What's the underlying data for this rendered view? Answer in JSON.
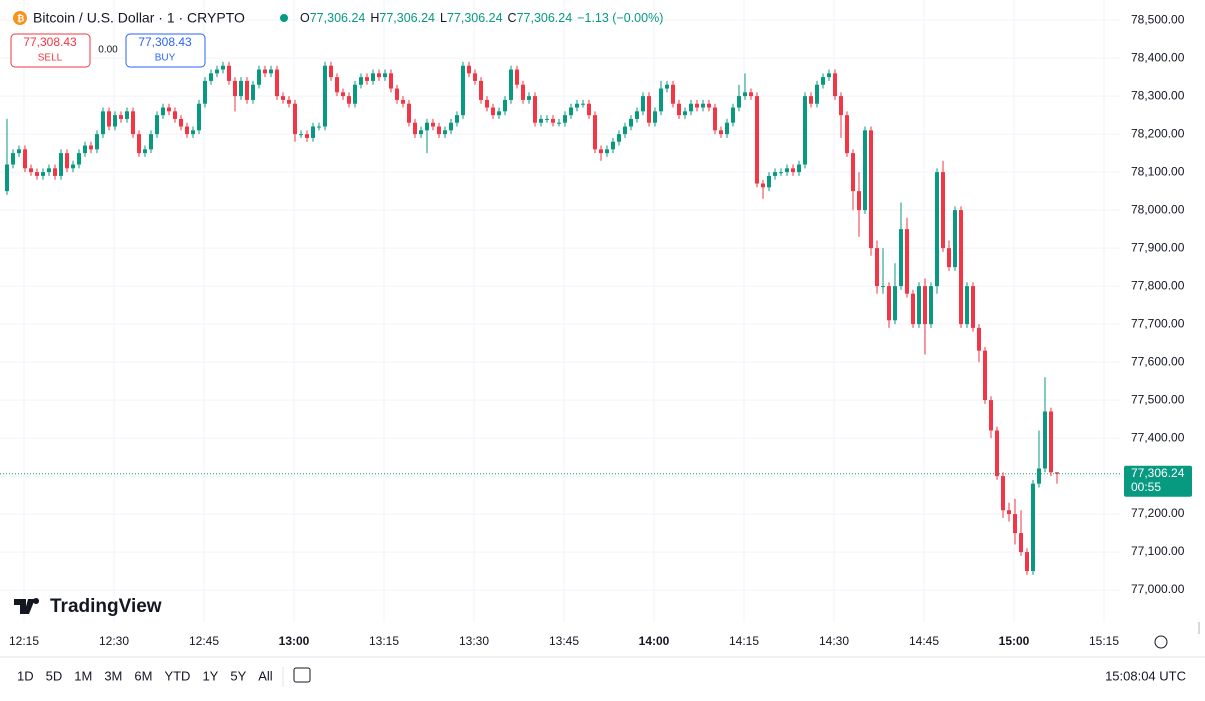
{
  "chart_data": {
    "type": "candlestick",
    "title": "Bitcoin / U.S. Dollar · 1 · CRYPTO",
    "ohlc_header": {
      "o_label": "O",
      "o": "77,306.24",
      "h_label": "H",
      "h": "77,306.24",
      "l_label": "L",
      "l": "77,306.24",
      "c_label": "C",
      "c": "77,306.24",
      "change": "−1.13 (−0.00%)"
    },
    "sell": {
      "price": "77,308.43",
      "label": "SELL"
    },
    "spread": "0.00",
    "buy": {
      "price": "77,308.43",
      "label": "BUY"
    },
    "logo": "TradingView",
    "up_color": "#089981",
    "down_color": "#f23645",
    "ylim": [
      76937,
      78553
    ],
    "yticks": [
      {
        "value": 78500,
        "label": "78,500.00"
      },
      {
        "value": 78400,
        "label": "78,400.00"
      },
      {
        "value": 78300,
        "label": "78,300.00"
      },
      {
        "value": 78200,
        "label": "78,200.00"
      },
      {
        "value": 78100,
        "label": "78,100.00"
      },
      {
        "value": 78000,
        "label": "78,000.00"
      },
      {
        "value": 77900,
        "label": "77,900.00"
      },
      {
        "value": 77800,
        "label": "77,800.00"
      },
      {
        "value": 77700,
        "label": "77,700.00"
      },
      {
        "value": 77600,
        "label": "77,600.00"
      },
      {
        "value": 77500,
        "label": "77,500.00"
      },
      {
        "value": 77400,
        "label": "77,400.00"
      },
      {
        "value": 77300,
        "label": "77,300.00"
      },
      {
        "value": 77200,
        "label": "77,200.00"
      },
      {
        "value": 77100,
        "label": "77,100.00"
      },
      {
        "value": 77000,
        "label": "77,000.00"
      }
    ],
    "xticks": [
      "12:15",
      "12:30",
      "12:45",
      "13:00",
      "13:15",
      "13:30",
      "13:45",
      "14:00",
      "14:15",
      "14:30",
      "14:45",
      "15:00",
      "15:15"
    ],
    "bold_xticks": [
      "13:00",
      "14:00",
      "15:00"
    ],
    "grid": true,
    "last_price": {
      "value": 77306.24,
      "label": "77,306.24",
      "countdown": "00:55"
    },
    "candles": {
      "open": [
        78050,
        78120,
        78150,
        78160,
        78110,
        78100,
        78090,
        78100,
        78110,
        78090,
        78150,
        78110,
        78120,
        78150,
        78170,
        78160,
        78200,
        78260,
        78220,
        78250,
        78240,
        78260,
        78200,
        78150,
        78160,
        78200,
        78250,
        78270,
        78260,
        78240,
        78220,
        78200,
        78210,
        78280,
        78340,
        78360,
        78370,
        78380,
        78340,
        78300,
        78340,
        78290,
        78330,
        78370,
        78360,
        78370,
        78300,
        78290,
        78280,
        78200,
        78200,
        78190,
        78220,
        78220,
        78380,
        78350,
        78310,
        78300,
        78280,
        78330,
        78350,
        78340,
        78360,
        78350,
        78360,
        78320,
        78290,
        78280,
        78230,
        78200,
        78210,
        78230,
        78220,
        78200,
        78210,
        78230,
        78250,
        78380,
        78360,
        78340,
        78290,
        78270,
        78250,
        78260,
        78290,
        78370,
        78330,
        78290,
        78300,
        78230,
        78240,
        78240,
        78230,
        78230,
        78250,
        78270,
        78280,
        78280,
        78250,
        78160,
        78150,
        78160,
        78180,
        78200,
        78220,
        78240,
        78260,
        78300,
        78230,
        78260,
        78320,
        78330,
        78280,
        78250,
        78260,
        78280,
        78270,
        78280,
        78270,
        78210,
        78200,
        78230,
        78270,
        78300,
        78310,
        78300,
        78070,
        78060,
        78090,
        78100,
        78100,
        78110,
        78100,
        78120,
        78300,
        78280,
        78330,
        78350,
        78360,
        78300,
        78250,
        78150,
        78050,
        78000,
        78210,
        77900,
        77800,
        77800,
        77710,
        77800,
        77950,
        77780,
        77700,
        77800,
        77700,
        77800,
        78100,
        77900,
        77850,
        78000,
        77700,
        77800,
        77690,
        77630,
        77500,
        77420,
        77300,
        77210,
        77200,
        77150,
        77100,
        77050,
        77280,
        77320,
        77470,
        77310
      ],
      "high": [
        78240,
        78160,
        78170,
        78170,
        78120,
        78110,
        78110,
        78120,
        78120,
        78160,
        78160,
        78130,
        78160,
        78180,
        78180,
        78210,
        78270,
        78270,
        78260,
        78260,
        78270,
        78270,
        78210,
        78170,
        78210,
        78260,
        78280,
        78280,
        78270,
        78250,
        78230,
        78220,
        78290,
        78350,
        78370,
        78380,
        78390,
        78390,
        78350,
        78350,
        78350,
        78340,
        78380,
        78380,
        78380,
        78380,
        78310,
        78300,
        78290,
        78210,
        78210,
        78230,
        78230,
        78390,
        78390,
        78360,
        78320,
        78310,
        78340,
        78360,
        78360,
        78370,
        78370,
        78370,
        78370,
        78330,
        78300,
        78290,
        78240,
        78220,
        78240,
        78240,
        78230,
        78220,
        78240,
        78260,
        78390,
        78390,
        78370,
        78350,
        78300,
        78280,
        78270,
        78300,
        78380,
        78380,
        78340,
        78310,
        78310,
        78250,
        78250,
        78250,
        78240,
        78260,
        78280,
        78290,
        78290,
        78290,
        78260,
        78170,
        78170,
        78190,
        78210,
        78230,
        78250,
        78270,
        78310,
        78310,
        78270,
        78340,
        78340,
        78340,
        78290,
        78270,
        78290,
        78290,
        78290,
        78290,
        78280,
        78220,
        78240,
        78280,
        78330,
        78360,
        78320,
        78310,
        78080,
        78100,
        78110,
        78110,
        78120,
        78120,
        78130,
        78310,
        78310,
        78340,
        78360,
        78370,
        78370,
        78310,
        78260,
        78160,
        78100,
        78220,
        78220,
        77920,
        77900,
        77810,
        77860,
        78020,
        77980,
        77790,
        77810,
        77820,
        77810,
        78110,
        78130,
        77920,
        78010,
        78010,
        77810,
        77810,
        77700,
        77640,
        77510,
        77430,
        77310,
        77230,
        77240,
        77210,
        77110,
        77290,
        77420,
        77560,
        77480,
        77310
      ],
      "low": [
        78040,
        78110,
        78140,
        78100,
        78090,
        78080,
        78080,
        78090,
        78080,
        78080,
        78100,
        78100,
        78110,
        78140,
        78150,
        78150,
        78190,
        78210,
        78210,
        78230,
        78230,
        78190,
        78140,
        78140,
        78150,
        78190,
        78240,
        78250,
        78230,
        78210,
        78190,
        78190,
        78200,
        78270,
        78330,
        78350,
        78360,
        78330,
        78260,
        78290,
        78280,
        78280,
        78320,
        78350,
        78350,
        78290,
        78280,
        78270,
        78180,
        78190,
        78180,
        78180,
        78210,
        78210,
        78340,
        78300,
        78290,
        78270,
        78270,
        78320,
        78330,
        78330,
        78340,
        78340,
        78310,
        78280,
        78270,
        78220,
        78190,
        78190,
        78150,
        78210,
        78190,
        78190,
        78200,
        78220,
        78240,
        78350,
        78330,
        78280,
        78260,
        78240,
        78240,
        78250,
        78280,
        78320,
        78280,
        78280,
        78220,
        78220,
        78230,
        78220,
        78220,
        78220,
        78240,
        78260,
        78270,
        78240,
        78150,
        78130,
        78140,
        78150,
        78170,
        78190,
        78210,
        78230,
        78250,
        78220,
        78220,
        78250,
        78310,
        78270,
        78240,
        78240,
        78250,
        78260,
        78260,
        78260,
        78200,
        78190,
        78190,
        78220,
        78260,
        78290,
        78290,
        78060,
        78030,
        78050,
        78080,
        78090,
        78090,
        78090,
        78090,
        78110,
        78270,
        78270,
        78320,
        78340,
        78290,
        78190,
        78140,
        78000,
        77930,
        77990,
        77880,
        77780,
        77780,
        77690,
        77700,
        77790,
        77770,
        77690,
        77690,
        77620,
        77690,
        77780,
        77890,
        77840,
        77840,
        77690,
        77690,
        77680,
        77600,
        77490,
        77400,
        77290,
        77190,
        77180,
        77120,
        77090,
        77040,
        77040,
        77270,
        77310,
        77300,
        77280
      ],
      "close": [
        78120,
        78150,
        78160,
        78110,
        78100,
        78090,
        78100,
        78110,
        78090,
        78150,
        78110,
        78120,
        78150,
        78170,
        78160,
        78200,
        78260,
        78220,
        78250,
        78240,
        78260,
        78200,
        78150,
        78160,
        78200,
        78250,
        78270,
        78260,
        78240,
        78220,
        78200,
        78210,
        78280,
        78340,
        78360,
        78370,
        78380,
        78340,
        78300,
        78340,
        78290,
        78330,
        78370,
        78360,
        78370,
        78300,
        78290,
        78280,
        78200,
        78200,
        78190,
        78220,
        78220,
        78380,
        78350,
        78310,
        78300,
        78280,
        78330,
        78350,
        78340,
        78360,
        78350,
        78360,
        78320,
        78290,
        78280,
        78230,
        78200,
        78210,
        78230,
        78220,
        78200,
        78210,
        78230,
        78250,
        78380,
        78360,
        78340,
        78290,
        78270,
        78250,
        78260,
        78290,
        78370,
        78330,
        78290,
        78300,
        78230,
        78240,
        78240,
        78230,
        78230,
        78250,
        78270,
        78280,
        78280,
        78250,
        78160,
        78150,
        78160,
        78180,
        78200,
        78220,
        78240,
        78260,
        78300,
        78230,
        78260,
        78320,
        78330,
        78280,
        78250,
        78260,
        78280,
        78270,
        78280,
        78270,
        78210,
        78200,
        78230,
        78270,
        78300,
        78310,
        78300,
        78070,
        78060,
        78090,
        78100,
        78100,
        78110,
        78100,
        78120,
        78300,
        78280,
        78330,
        78350,
        78360,
        78300,
        78250,
        78150,
        78050,
        78000,
        78210,
        77900,
        77800,
        77800,
        77710,
        77800,
        77950,
        77780,
        77700,
        77800,
        77700,
        77800,
        78100,
        77900,
        77850,
        78000,
        77700,
        77800,
        77690,
        77630,
        77500,
        77420,
        77300,
        77210,
        77200,
        77150,
        77100,
        77050,
        77280,
        77320,
        77470,
        77310,
        77306.24
      ]
    },
    "ranges": [
      "1D",
      "5D",
      "1M",
      "3M",
      "6M",
      "YTD",
      "1Y",
      "5Y",
      "All"
    ],
    "clock": "15:08:04 UTC"
  }
}
